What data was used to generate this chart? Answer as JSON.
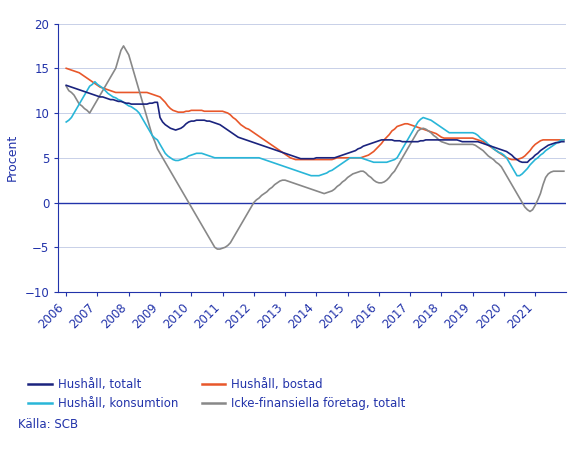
{
  "title": "",
  "ylabel": "Procent",
  "ylim": [
    -10,
    20
  ],
  "yticks": [
    -10,
    -5,
    0,
    5,
    10,
    15,
    20
  ],
  "background_color": "#ffffff",
  "grid_color": "#c8d0e8",
  "axis_color": "#2233aa",
  "text_color": "#2233aa",
  "source": "Källa: SCB",
  "legend_order": [
    "Hushåll, totalt",
    "Hushåll, konsumtion",
    "Hushåll, bostad",
    "Icke-finansiella företag, totalt"
  ],
  "c_totalt": "#1a237e",
  "c_konsumtion": "#29b6d8",
  "c_bostad": "#e8572a",
  "c_icke": "#888888",
  "x_years": [
    2006,
    2007,
    2008,
    2009,
    2010,
    2011,
    2012,
    2013,
    2014,
    2015,
    2016,
    2017,
    2018,
    2019,
    2020,
    2021
  ],
  "hushall_totalt_monthly": [
    13.1,
    13.0,
    12.9,
    12.8,
    12.7,
    12.6,
    12.5,
    12.4,
    12.3,
    12.2,
    12.1,
    12.0,
    11.9,
    11.8,
    11.8,
    11.7,
    11.6,
    11.5,
    11.5,
    11.4,
    11.3,
    11.3,
    11.2,
    11.1,
    11.1,
    11.0,
    11.0,
    11.0,
    11.0,
    11.0,
    11.0,
    11.0,
    11.1,
    11.1,
    11.2,
    11.2,
    9.5,
    9.0,
    8.7,
    8.5,
    8.3,
    8.2,
    8.1,
    8.2,
    8.3,
    8.5,
    8.8,
    9.0,
    9.1,
    9.1,
    9.2,
    9.2,
    9.2,
    9.2,
    9.1,
    9.1,
    9.0,
    8.9,
    8.8,
    8.7,
    8.5,
    8.3,
    8.1,
    7.9,
    7.7,
    7.5,
    7.3,
    7.2,
    7.1,
    7.0,
    6.9,
    6.8,
    6.7,
    6.6,
    6.5,
    6.4,
    6.3,
    6.2,
    6.1,
    6.0,
    5.9,
    5.8,
    5.7,
    5.6,
    5.5,
    5.4,
    5.3,
    5.2,
    5.1,
    5.0,
    4.9,
    4.9,
    4.9,
    4.9,
    4.9,
    4.9,
    5.0,
    5.0,
    5.0,
    5.0,
    5.0,
    5.0,
    5.0,
    5.0,
    5.1,
    5.2,
    5.3,
    5.4,
    5.5,
    5.6,
    5.7,
    5.8,
    6.0,
    6.1,
    6.3,
    6.4,
    6.5,
    6.6,
    6.7,
    6.8,
    6.9,
    7.0,
    7.0,
    7.0,
    7.0,
    7.0,
    6.9,
    6.9,
    6.9,
    6.8,
    6.8,
    6.8,
    6.8,
    6.8,
    6.8,
    6.8,
    6.9,
    6.9,
    7.0,
    7.0,
    7.0,
    7.0,
    7.0,
    7.0,
    7.0,
    7.0,
    7.0,
    7.0,
    7.0,
    7.0,
    7.0,
    6.9,
    6.8,
    6.8,
    6.8,
    6.8,
    6.8,
    6.8,
    6.8,
    6.7,
    6.6,
    6.5,
    6.4,
    6.3,
    6.2,
    6.1,
    6.0,
    5.9,
    5.8,
    5.7,
    5.5,
    5.3,
    5.0,
    4.8,
    4.6,
    4.5,
    4.5,
    4.5,
    4.8,
    5.0,
    5.3,
    5.5,
    5.8,
    6.0,
    6.2,
    6.4,
    6.5,
    6.6,
    6.7,
    6.7,
    6.8,
    6.8
  ],
  "hushall_konsumtion_monthly": [
    9.0,
    9.2,
    9.5,
    10.0,
    10.5,
    11.0,
    11.5,
    12.0,
    12.5,
    13.0,
    13.2,
    13.5,
    13.2,
    13.0,
    12.8,
    12.5,
    12.2,
    12.0,
    11.8,
    11.7,
    11.5,
    11.4,
    11.2,
    11.0,
    10.8,
    10.7,
    10.5,
    10.3,
    10.0,
    9.5,
    9.0,
    8.5,
    8.0,
    7.5,
    7.2,
    7.0,
    6.5,
    6.0,
    5.5,
    5.2,
    5.0,
    4.8,
    4.7,
    4.7,
    4.8,
    4.9,
    5.0,
    5.2,
    5.3,
    5.4,
    5.5,
    5.5,
    5.5,
    5.4,
    5.3,
    5.2,
    5.1,
    5.0,
    5.0,
    5.0,
    5.0,
    5.0,
    5.0,
    5.0,
    5.0,
    5.0,
    5.0,
    5.0,
    5.0,
    5.0,
    5.0,
    5.0,
    5.0,
    5.0,
    5.0,
    4.9,
    4.8,
    4.7,
    4.6,
    4.5,
    4.4,
    4.3,
    4.2,
    4.1,
    4.0,
    3.9,
    3.8,
    3.7,
    3.6,
    3.5,
    3.4,
    3.3,
    3.2,
    3.1,
    3.0,
    3.0,
    3.0,
    3.0,
    3.1,
    3.2,
    3.3,
    3.5,
    3.6,
    3.8,
    4.0,
    4.2,
    4.4,
    4.6,
    4.8,
    5.0,
    5.0,
    5.0,
    5.0,
    5.0,
    4.9,
    4.8,
    4.7,
    4.6,
    4.5,
    4.5,
    4.5,
    4.5,
    4.5,
    4.5,
    4.6,
    4.7,
    4.8,
    5.0,
    5.5,
    6.0,
    6.5,
    7.0,
    7.5,
    8.0,
    8.5,
    9.0,
    9.3,
    9.5,
    9.4,
    9.3,
    9.2,
    9.0,
    8.8,
    8.6,
    8.4,
    8.2,
    8.0,
    7.8,
    7.8,
    7.8,
    7.8,
    7.8,
    7.8,
    7.8,
    7.8,
    7.8,
    7.8,
    7.7,
    7.5,
    7.2,
    7.0,
    6.8,
    6.5,
    6.3,
    6.0,
    5.8,
    5.6,
    5.5,
    5.3,
    5.0,
    4.5,
    4.0,
    3.5,
    3.0,
    3.0,
    3.2,
    3.5,
    3.8,
    4.2,
    4.5,
    4.8,
    5.0,
    5.3,
    5.5,
    5.8,
    6.0,
    6.2,
    6.4,
    6.6,
    6.8,
    7.0,
    7.0
  ],
  "hushall_bostad_monthly": [
    15.0,
    14.9,
    14.8,
    14.7,
    14.6,
    14.5,
    14.3,
    14.1,
    13.9,
    13.7,
    13.5,
    13.3,
    13.1,
    12.9,
    12.8,
    12.7,
    12.6,
    12.5,
    12.4,
    12.3,
    12.3,
    12.3,
    12.3,
    12.3,
    12.3,
    12.3,
    12.3,
    12.3,
    12.3,
    12.3,
    12.3,
    12.3,
    12.2,
    12.1,
    12.0,
    11.9,
    11.8,
    11.5,
    11.2,
    10.8,
    10.5,
    10.3,
    10.2,
    10.1,
    10.1,
    10.1,
    10.2,
    10.2,
    10.3,
    10.3,
    10.3,
    10.3,
    10.3,
    10.2,
    10.2,
    10.2,
    10.2,
    10.2,
    10.2,
    10.2,
    10.2,
    10.1,
    10.0,
    9.8,
    9.5,
    9.3,
    9.0,
    8.7,
    8.5,
    8.3,
    8.2,
    8.0,
    7.8,
    7.6,
    7.4,
    7.2,
    7.0,
    6.8,
    6.6,
    6.4,
    6.2,
    6.0,
    5.8,
    5.6,
    5.4,
    5.2,
    5.0,
    4.9,
    4.8,
    4.8,
    4.8,
    4.8,
    4.8,
    4.8,
    4.8,
    4.8,
    4.8,
    4.8,
    4.8,
    4.8,
    4.8,
    4.8,
    4.8,
    4.9,
    5.0,
    5.0,
    5.0,
    5.0,
    5.0,
    5.0,
    5.0,
    5.0,
    5.0,
    5.0,
    5.1,
    5.2,
    5.3,
    5.5,
    5.7,
    6.0,
    6.3,
    6.6,
    7.0,
    7.3,
    7.6,
    8.0,
    8.2,
    8.5,
    8.6,
    8.7,
    8.8,
    8.8,
    8.7,
    8.6,
    8.5,
    8.4,
    8.3,
    8.2,
    8.1,
    8.0,
    7.9,
    7.8,
    7.7,
    7.5,
    7.3,
    7.2,
    7.2,
    7.2,
    7.2,
    7.2,
    7.2,
    7.2,
    7.2,
    7.2,
    7.2,
    7.2,
    7.2,
    7.1,
    7.0,
    6.9,
    6.8,
    6.6,
    6.4,
    6.2,
    6.0,
    5.8,
    5.6,
    5.4,
    5.2,
    5.0,
    4.9,
    4.8,
    4.8,
    4.8,
    4.9,
    5.0,
    5.2,
    5.5,
    5.8,
    6.2,
    6.5,
    6.7,
    6.9,
    7.0,
    7.0,
    7.0,
    7.0,
    7.0,
    7.0,
    7.0,
    7.0,
    7.0
  ],
  "icke_finansiella_monthly": [
    13.0,
    12.5,
    12.3,
    12.0,
    11.5,
    11.0,
    10.8,
    10.5,
    10.3,
    10.0,
    10.5,
    11.0,
    11.5,
    12.0,
    12.5,
    13.0,
    13.5,
    14.0,
    14.5,
    15.0,
    16.0,
    17.0,
    17.5,
    17.0,
    16.5,
    15.5,
    14.5,
    13.5,
    12.5,
    11.5,
    10.5,
    9.5,
    8.5,
    7.5,
    6.8,
    6.0,
    5.5,
    5.0,
    4.5,
    4.0,
    3.5,
    3.0,
    2.5,
    2.0,
    1.5,
    1.0,
    0.5,
    0.0,
    -0.5,
    -1.0,
    -1.5,
    -2.0,
    -2.5,
    -3.0,
    -3.5,
    -4.0,
    -4.5,
    -5.0,
    -5.2,
    -5.2,
    -5.1,
    -5.0,
    -4.8,
    -4.5,
    -4.0,
    -3.5,
    -3.0,
    -2.5,
    -2.0,
    -1.5,
    -1.0,
    -0.5,
    0.0,
    0.3,
    0.5,
    0.8,
    1.0,
    1.2,
    1.5,
    1.7,
    2.0,
    2.2,
    2.4,
    2.5,
    2.5,
    2.4,
    2.3,
    2.2,
    2.1,
    2.0,
    1.9,
    1.8,
    1.7,
    1.6,
    1.5,
    1.4,
    1.3,
    1.2,
    1.1,
    1.0,
    1.1,
    1.2,
    1.3,
    1.5,
    1.8,
    2.0,
    2.3,
    2.5,
    2.8,
    3.0,
    3.2,
    3.3,
    3.4,
    3.5,
    3.5,
    3.3,
    3.0,
    2.8,
    2.5,
    2.3,
    2.2,
    2.2,
    2.3,
    2.5,
    2.8,
    3.2,
    3.5,
    4.0,
    4.5,
    5.0,
    5.5,
    6.0,
    6.5,
    7.0,
    7.5,
    8.0,
    8.2,
    8.3,
    8.2,
    8.0,
    7.8,
    7.5,
    7.3,
    7.0,
    6.8,
    6.7,
    6.6,
    6.5,
    6.5,
    6.5,
    6.5,
    6.5,
    6.5,
    6.5,
    6.5,
    6.5,
    6.5,
    6.4,
    6.2,
    6.0,
    5.8,
    5.5,
    5.2,
    5.0,
    4.8,
    4.5,
    4.3,
    4.0,
    3.5,
    3.0,
    2.5,
    2.0,
    1.5,
    1.0,
    0.5,
    0.0,
    -0.5,
    -0.8,
    -1.0,
    -0.8,
    -0.3,
    0.3,
    1.0,
    2.0,
    2.8,
    3.2,
    3.4,
    3.5,
    3.5,
    3.5,
    3.5,
    3.5
  ]
}
